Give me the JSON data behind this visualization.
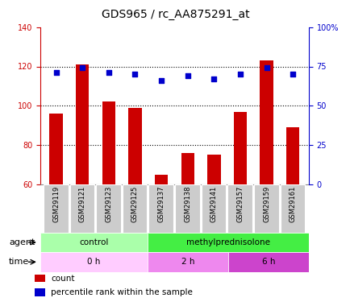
{
  "title": "GDS965 / rc_AA875291_at",
  "samples": [
    "GSM29119",
    "GSM29121",
    "GSM29123",
    "GSM29125",
    "GSM29137",
    "GSM29138",
    "GSM29141",
    "GSM29157",
    "GSM29159",
    "GSM29161"
  ],
  "counts": [
    96,
    121,
    102,
    99,
    65,
    76,
    75,
    97,
    123,
    89
  ],
  "percentiles": [
    71,
    74,
    71,
    70,
    66,
    69,
    67,
    70,
    74,
    70
  ],
  "ylim_left": [
    60,
    140
  ],
  "ylim_right": [
    0,
    100
  ],
  "yticks_left": [
    60,
    80,
    100,
    120,
    140
  ],
  "yticks_right": [
    0,
    25,
    50,
    75,
    100
  ],
  "ytick_labels_right": [
    "0",
    "25",
    "50",
    "75",
    "100%"
  ],
  "bar_color": "#cc0000",
  "dot_color": "#0000cc",
  "agent_groups": [
    {
      "label": "control",
      "start": 0,
      "end": 4,
      "color": "#aaffaa"
    },
    {
      "label": "methylprednisolone",
      "start": 4,
      "end": 10,
      "color": "#44ee44"
    }
  ],
  "time_groups": [
    {
      "label": "0 h",
      "start": 0,
      "end": 4,
      "color": "#ffccff"
    },
    {
      "label": "2 h",
      "start": 4,
      "end": 7,
      "color": "#ee88ee"
    },
    {
      "label": "6 h",
      "start": 7,
      "end": 10,
      "color": "#cc44cc"
    }
  ],
  "legend_count_label": "count",
  "legend_pct_label": "percentile rank within the sample",
  "agent_label": "agent",
  "time_label": "time",
  "title_fontsize": 10,
  "tick_fontsize": 7,
  "label_fontsize": 8,
  "bar_width": 0.5,
  "grid_yticks": [
    80,
    100,
    120
  ]
}
